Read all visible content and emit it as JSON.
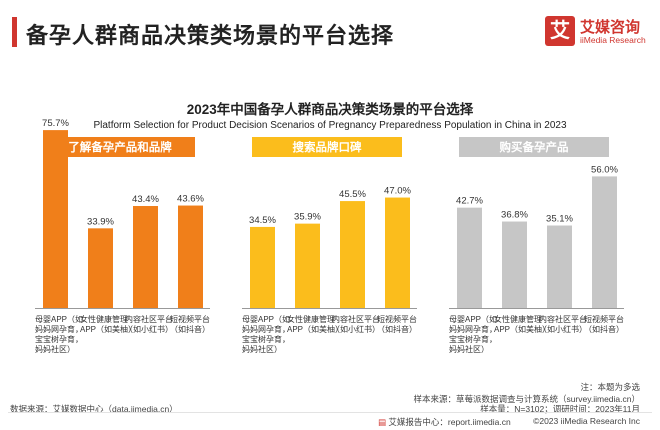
{
  "header": {
    "title": "备孕人群商品决策类场景的平台选择",
    "logo_char": "艾",
    "logo_cn": "艾媒咨询",
    "logo_en": "iiMedia Research"
  },
  "colors": {
    "accent": "#d0362f",
    "group1": "#f07f1a",
    "group2": "#fbbd1c",
    "group3": "#c6c6c6"
  },
  "chart_data": {
    "type": "bar",
    "title": "2023年中国备孕人群商品决策类场景的平台选择",
    "subtitle": "Platform Selection for Product Decision Scenarios of Pregnancy Preparedness Population in China in 2023",
    "unit": "%",
    "ylim": [
      0,
      80
    ],
    "categories": [
      [
        "母婴APP（如",
        "妈妈网孕育，",
        "宝宝树孕育，",
        "妈妈社区）"
      ],
      [
        "女性健康管理",
        "APP（如美柚）"
      ],
      [
        "内容社区平台",
        "（如小红书）"
      ],
      [
        "短视频平台",
        "（如抖音）"
      ]
    ],
    "series": [
      {
        "name": "了解备孕产品和品牌",
        "values": [
          75.7,
          33.9,
          43.4,
          43.6
        ],
        "labels": [
          "75.7%",
          "33.9%",
          "43.4%",
          "43.6%"
        ]
      },
      {
        "name": "搜索品牌口碑",
        "values": [
          34.5,
          35.9,
          45.5,
          47.0
        ],
        "labels": [
          "34.5%",
          "35.9%",
          "45.5%",
          "47.0%"
        ]
      },
      {
        "name": "购买备孕产品",
        "values": [
          42.7,
          36.8,
          35.1,
          56.0
        ],
        "labels": [
          "42.7%",
          "36.8%",
          "35.1%",
          "56.0%"
        ]
      }
    ]
  },
  "notes": {
    "note": "注：本题为多选",
    "sample_source": "样本来源：草莓派数据调查与计算系统（survey.iimedia.cn）",
    "sample_size": "样本量：N=3102；调研时间：2023年11月",
    "data_source": "数据来源：艾媒数据中心（data.iimedia.cn）"
  },
  "footer": {
    "report_center": "艾媒报告中心：report.iimedia.cn",
    "copyright": "©2023  iiMedia Research  Inc"
  }
}
